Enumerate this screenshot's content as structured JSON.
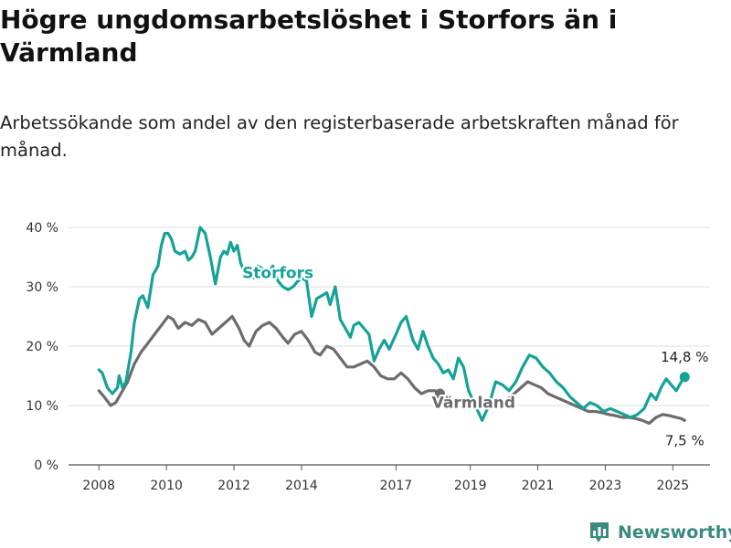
{
  "title": "Högre ungdomsarbetslöshet i Storfors än i Värmland",
  "subtitle": "Arbetssökande som andel av den registerbaserade arbetskraften månad för månad.",
  "brand": {
    "name": "Newsworthy",
    "icon": "bar-chart-logo-icon"
  },
  "colors": {
    "storfors": "#14a396",
    "varmland": "#6b6b70",
    "grid": "#dddddd",
    "axis": "#555555"
  },
  "chart_data": {
    "type": "line",
    "title": "Högre ungdomsarbetslöshet i Storfors än i Värmland",
    "subtitle": "Arbetssökande som andel av den registerbaserade arbetskraften månad för månad.",
    "xlabel": "",
    "ylabel": "",
    "x_ticks": [
      "2008",
      "2010",
      "2012",
      "2014",
      "2017",
      "2019",
      "2021",
      "2023",
      "2025"
    ],
    "x_tick_values": [
      2008,
      2010,
      2012,
      2014,
      2016.8,
      2019,
      2021,
      2023,
      2025
    ],
    "y_ticks": [
      0,
      10,
      20,
      30,
      40
    ],
    "y_tick_labels": [
      "0 %",
      "10 %",
      "20 %",
      "30 %",
      "40 %"
    ],
    "xlim": [
      2007.1,
      2026.1
    ],
    "ylim": [
      0,
      40
    ],
    "grid": true,
    "legend": "inline",
    "series": [
      {
        "name": "Storfors",
        "color": "#14a396",
        "end_label": "14,8 %",
        "points": [
          [
            2008.0,
            16.0
          ],
          [
            2008.1,
            15.5
          ],
          [
            2008.25,
            13.0
          ],
          [
            2008.4,
            12.0
          ],
          [
            2008.55,
            13.0
          ],
          [
            2008.6,
            15.0
          ],
          [
            2008.7,
            13.0
          ],
          [
            2008.8,
            14.0
          ],
          [
            2008.95,
            19.0
          ],
          [
            2009.05,
            24.0
          ],
          [
            2009.2,
            28.0
          ],
          [
            2009.3,
            28.5
          ],
          [
            2009.45,
            26.5
          ],
          [
            2009.6,
            32.0
          ],
          [
            2009.75,
            33.5
          ],
          [
            2009.85,
            37.0
          ],
          [
            2009.95,
            39.0
          ],
          [
            2010.05,
            39.0
          ],
          [
            2010.15,
            38.0
          ],
          [
            2010.25,
            36.0
          ],
          [
            2010.4,
            35.5
          ],
          [
            2010.55,
            36.0
          ],
          [
            2010.65,
            34.5
          ],
          [
            2010.75,
            35.0
          ],
          [
            2010.85,
            36.0
          ],
          [
            2011.0,
            40.0
          ],
          [
            2011.15,
            39.0
          ],
          [
            2011.3,
            35.0
          ],
          [
            2011.45,
            30.5
          ],
          [
            2011.6,
            35.0
          ],
          [
            2011.7,
            36.0
          ],
          [
            2011.8,
            35.5
          ],
          [
            2011.9,
            37.5
          ],
          [
            2012.0,
            36.0
          ],
          [
            2012.1,
            37.0
          ],
          [
            2012.2,
            34.0
          ],
          [
            2012.35,
            32.0
          ],
          [
            2012.5,
            32.0
          ],
          [
            2012.6,
            31.5
          ],
          [
            2012.7,
            33.5
          ],
          [
            2012.85,
            33.0
          ],
          [
            2013.0,
            32.0
          ],
          [
            2013.15,
            33.5
          ],
          [
            2013.3,
            31.0
          ],
          [
            2013.45,
            30.0
          ],
          [
            2013.6,
            29.5
          ],
          [
            2013.75,
            30.0
          ],
          [
            2013.9,
            31.0
          ],
          [
            2014.0,
            31.5
          ],
          [
            2014.15,
            31.0
          ],
          [
            2014.3,
            25.0
          ],
          [
            2014.45,
            28.0
          ],
          [
            2014.6,
            28.5
          ],
          [
            2014.75,
            29.0
          ],
          [
            2014.85,
            27.0
          ],
          [
            2015.0,
            30.0
          ],
          [
            2015.15,
            24.5
          ],
          [
            2015.3,
            23.0
          ],
          [
            2015.45,
            21.5
          ],
          [
            2015.55,
            23.5
          ],
          [
            2015.7,
            24.0
          ],
          [
            2015.85,
            23.0
          ],
          [
            2016.0,
            22.0
          ],
          [
            2016.15,
            17.5
          ],
          [
            2016.3,
            19.5
          ],
          [
            2016.45,
            21.0
          ],
          [
            2016.6,
            19.5
          ],
          [
            2016.8,
            22.0
          ],
          [
            2016.95,
            24.0
          ],
          [
            2017.1,
            25.0
          ],
          [
            2017.3,
            21.0
          ],
          [
            2017.45,
            19.5
          ],
          [
            2017.6,
            22.5
          ],
          [
            2017.75,
            20.0
          ],
          [
            2017.9,
            18.0
          ],
          [
            2018.05,
            17.0
          ],
          [
            2018.2,
            15.5
          ],
          [
            2018.35,
            16.0
          ],
          [
            2018.5,
            14.5
          ],
          [
            2018.65,
            18.0
          ],
          [
            2018.8,
            16.5
          ],
          [
            2018.95,
            12.5
          ],
          [
            2019.15,
            10.0
          ],
          [
            2019.35,
            7.5
          ],
          [
            2019.55,
            10.0
          ],
          [
            2019.75,
            14.0
          ],
          [
            2019.95,
            13.5
          ],
          [
            2020.15,
            12.5
          ],
          [
            2020.35,
            14.0
          ],
          [
            2020.55,
            16.5
          ],
          [
            2020.75,
            18.5
          ],
          [
            2020.95,
            18.0
          ],
          [
            2021.15,
            16.5
          ],
          [
            2021.35,
            15.5
          ],
          [
            2021.55,
            14.0
          ],
          [
            2021.75,
            13.0
          ],
          [
            2021.95,
            11.5
          ],
          [
            2022.15,
            10.5
          ],
          [
            2022.35,
            9.5
          ],
          [
            2022.55,
            10.5
          ],
          [
            2022.75,
            10.0
          ],
          [
            2022.95,
            9.0
          ],
          [
            2023.15,
            9.5
          ],
          [
            2023.35,
            9.0
          ],
          [
            2023.55,
            8.5
          ],
          [
            2023.75,
            8.0
          ],
          [
            2023.95,
            8.5
          ],
          [
            2024.15,
            9.5
          ],
          [
            2024.35,
            12.0
          ],
          [
            2024.5,
            11.0
          ],
          [
            2024.65,
            13.0
          ],
          [
            2024.8,
            14.5
          ],
          [
            2024.95,
            13.5
          ],
          [
            2025.1,
            12.5
          ],
          [
            2025.25,
            14.0
          ],
          [
            2025.35,
            14.8
          ]
        ]
      },
      {
        "name": "Värmland",
        "color": "#6b6b70",
        "end_label": "7,5 %",
        "points": [
          [
            2008.0,
            12.5
          ],
          [
            2008.15,
            11.5
          ],
          [
            2008.35,
            10.0
          ],
          [
            2008.5,
            10.5
          ],
          [
            2008.65,
            12.0
          ],
          [
            2008.85,
            14.0
          ],
          [
            2009.05,
            17.0
          ],
          [
            2009.25,
            19.0
          ],
          [
            2009.45,
            20.5
          ],
          [
            2009.65,
            22.0
          ],
          [
            2009.85,
            23.5
          ],
          [
            2010.05,
            25.0
          ],
          [
            2010.2,
            24.5
          ],
          [
            2010.35,
            23.0
          ],
          [
            2010.55,
            24.0
          ],
          [
            2010.75,
            23.5
          ],
          [
            2010.95,
            24.5
          ],
          [
            2011.15,
            24.0
          ],
          [
            2011.35,
            22.0
          ],
          [
            2011.55,
            23.0
          ],
          [
            2011.75,
            24.0
          ],
          [
            2011.95,
            25.0
          ],
          [
            2012.15,
            23.0
          ],
          [
            2012.3,
            21.0
          ],
          [
            2012.45,
            20.0
          ],
          [
            2012.65,
            22.5
          ],
          [
            2012.85,
            23.5
          ],
          [
            2013.05,
            24.0
          ],
          [
            2013.25,
            23.0
          ],
          [
            2013.45,
            21.5
          ],
          [
            2013.6,
            20.5
          ],
          [
            2013.8,
            22.0
          ],
          [
            2014.0,
            22.5
          ],
          [
            2014.2,
            21.0
          ],
          [
            2014.4,
            19.0
          ],
          [
            2014.55,
            18.5
          ],
          [
            2014.75,
            20.0
          ],
          [
            2014.95,
            19.5
          ],
          [
            2015.15,
            18.0
          ],
          [
            2015.35,
            16.5
          ],
          [
            2015.55,
            16.5
          ],
          [
            2015.75,
            17.0
          ],
          [
            2015.95,
            17.5
          ],
          [
            2016.15,
            16.5
          ],
          [
            2016.35,
            15.0
          ],
          [
            2016.55,
            14.5
          ],
          [
            2016.75,
            14.5
          ],
          [
            2016.95,
            15.5
          ],
          [
            2017.15,
            14.5
          ],
          [
            2017.35,
            13.0
          ],
          [
            2017.55,
            12.0
          ],
          [
            2017.75,
            12.5
          ],
          [
            2017.95,
            12.5
          ],
          [
            2018.1,
            12.0
          ]
        ]
      },
      {
        "name": "",
        "color": "#6b6b70",
        "points": [
          [
            2020.1,
            11.0
          ],
          [
            2020.3,
            12.0
          ],
          [
            2020.5,
            13.0
          ],
          [
            2020.7,
            14.0
          ],
          [
            2020.9,
            13.5
          ],
          [
            2021.1,
            13.0
          ],
          [
            2021.3,
            12.0
          ],
          [
            2021.5,
            11.5
          ],
          [
            2021.7,
            11.0
          ],
          [
            2021.9,
            10.5
          ],
          [
            2022.1,
            10.0
          ],
          [
            2022.3,
            9.5
          ],
          [
            2022.5,
            9.0
          ],
          [
            2022.7,
            9.0
          ],
          [
            2022.9,
            8.8
          ],
          [
            2023.1,
            8.5
          ],
          [
            2023.3,
            8.3
          ],
          [
            2023.5,
            8.0
          ],
          [
            2023.7,
            8.0
          ],
          [
            2023.9,
            7.8
          ],
          [
            2024.1,
            7.5
          ],
          [
            2024.3,
            7.0
          ],
          [
            2024.5,
            8.0
          ],
          [
            2024.7,
            8.5
          ],
          [
            2024.9,
            8.3
          ],
          [
            2025.1,
            8.0
          ],
          [
            2025.25,
            7.8
          ],
          [
            2025.35,
            7.5
          ]
        ]
      }
    ],
    "annotations": [
      {
        "text": "Storfors",
        "x": 2013.3,
        "y": 31.5,
        "color": "#14a396"
      },
      {
        "text": "Värmland",
        "x": 2019.1,
        "y": 9.6,
        "color": "#6b6b70"
      }
    ]
  }
}
